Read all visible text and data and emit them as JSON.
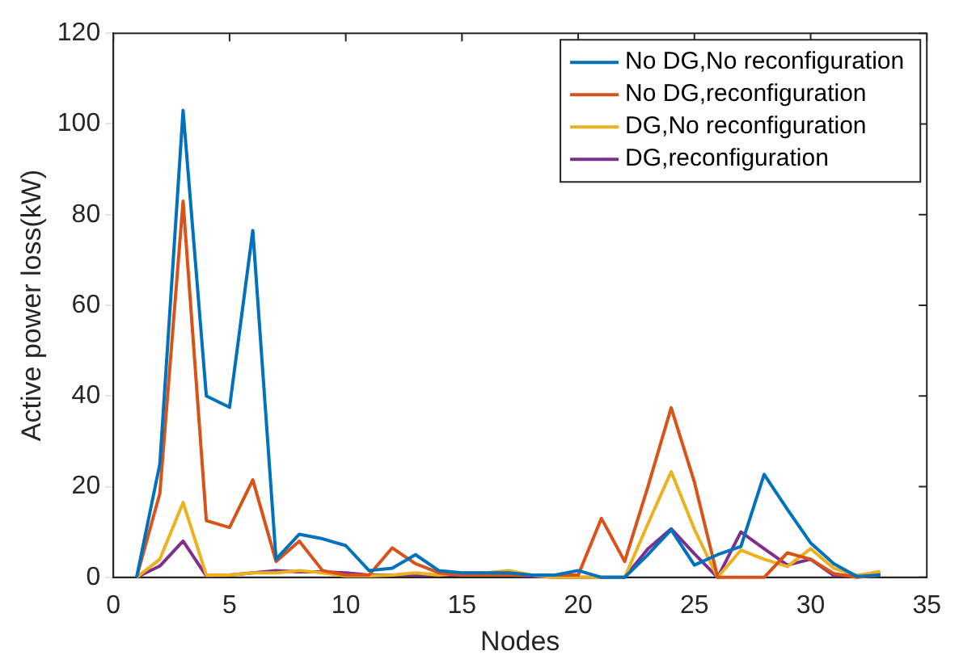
{
  "chart_data": {
    "type": "line",
    "xlabel": "Nodes",
    "ylabel": "Active power loss(kW)",
    "x": [
      1,
      2,
      3,
      4,
      5,
      6,
      7,
      8,
      9,
      10,
      11,
      12,
      13,
      14,
      15,
      16,
      17,
      18,
      19,
      20,
      21,
      22,
      23,
      24,
      25,
      26,
      27,
      28,
      29,
      30,
      31,
      32,
      33
    ],
    "xlim": [
      0,
      35
    ],
    "xticks": [
      0,
      5,
      10,
      15,
      20,
      25,
      30,
      35
    ],
    "ylim": [
      0,
      120
    ],
    "yticks": [
      0,
      20,
      40,
      60,
      80,
      100,
      120
    ],
    "grid": false,
    "legend": "top right",
    "line_style": "solid",
    "marker": "none",
    "series": [
      {
        "name": "No DG,No reconfiguration",
        "color": "#0072bd",
        "values": [
          0,
          25,
          103,
          40,
          37.5,
          76.5,
          4,
          9.5,
          8.5,
          7,
          1.5,
          2,
          5,
          1.5,
          1,
          1,
          1,
          0.5,
          0.5,
          1.5,
          0,
          0,
          5,
          10.5,
          2.7,
          5,
          6.8,
          22.7,
          15,
          7.6,
          3,
          0.2,
          0.5
        ]
      },
      {
        "name": "No DG,reconfiguration",
        "color": "#d95319",
        "values": [
          0,
          18.5,
          83,
          12.5,
          11,
          21.5,
          3.5,
          8,
          1.5,
          0.5,
          0.5,
          6.5,
          3,
          1,
          0.5,
          0.5,
          0.5,
          0.5,
          0.5,
          0.5,
          13,
          3.5,
          20,
          37.4,
          21,
          0,
          0,
          0,
          5.4,
          4,
          0.8,
          0,
          0.5
        ]
      },
      {
        "name": "DG,No reconfiguration",
        "color": "#edb120",
        "values": [
          0,
          4,
          16.5,
          0.5,
          0.5,
          1,
          1,
          1.5,
          1,
          0.3,
          0.3,
          0.5,
          1,
          0.5,
          1,
          1,
          1.5,
          0.5,
          0,
          0,
          0,
          0,
          11.8,
          23.3,
          10.6,
          0,
          6,
          4,
          2.4,
          6.3,
          2,
          0.4,
          1.3
        ]
      },
      {
        "name": "DG,reconfiguration",
        "color": "#7e2f8e",
        "values": [
          0,
          2.5,
          8,
          0.3,
          0.5,
          1,
          1.5,
          1.2,
          1.2,
          1,
          0.5,
          0.5,
          0.5,
          0.5,
          0.5,
          0.5,
          0.5,
          0.3,
          0,
          0,
          0,
          0,
          6.3,
          10.7,
          5.2,
          0,
          10,
          6.3,
          2.7,
          4,
          0.4,
          0.4,
          0.8
        ]
      }
    ]
  }
}
